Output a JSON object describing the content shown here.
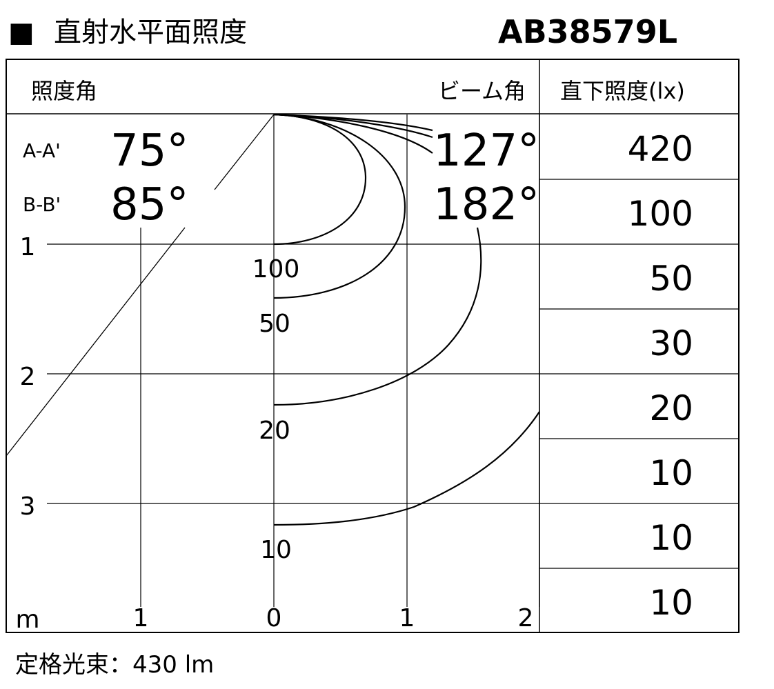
{
  "header": {
    "title_marker": "■",
    "title": "直射水平面照度",
    "model": "AB38579L"
  },
  "table_header": {
    "illum_angle_label": "照度角",
    "beam_angle_label": "ビーム角",
    "direct_label": "直下照度(lx)"
  },
  "angles": [
    {
      "name": "A-A'",
      "illum_angle": "75°",
      "beam_angle": "127°"
    },
    {
      "name": "B-B'",
      "illum_angle": "85°",
      "beam_angle": "182°"
    }
  ],
  "direct_lux": [
    "420",
    "100",
    "50",
    "30",
    "20",
    "10",
    "10",
    "10"
  ],
  "distance_ticks": [
    "1",
    "2",
    "3"
  ],
  "horizontal_ticks": {
    "unit": "m",
    "labels": [
      "1",
      "0",
      "1",
      "2"
    ]
  },
  "contour_labels": [
    "100",
    "50",
    "20",
    "10"
  ],
  "footer": {
    "flux_label": "定格光束：430 lm"
  }
}
